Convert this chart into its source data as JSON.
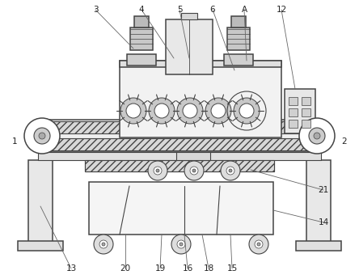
{
  "bg_color": "#ffffff",
  "line_color": "#444444",
  "label_color": "#222222",
  "label_fontsize": 7.5,
  "lw": 0.8,
  "lw2": 1.1
}
